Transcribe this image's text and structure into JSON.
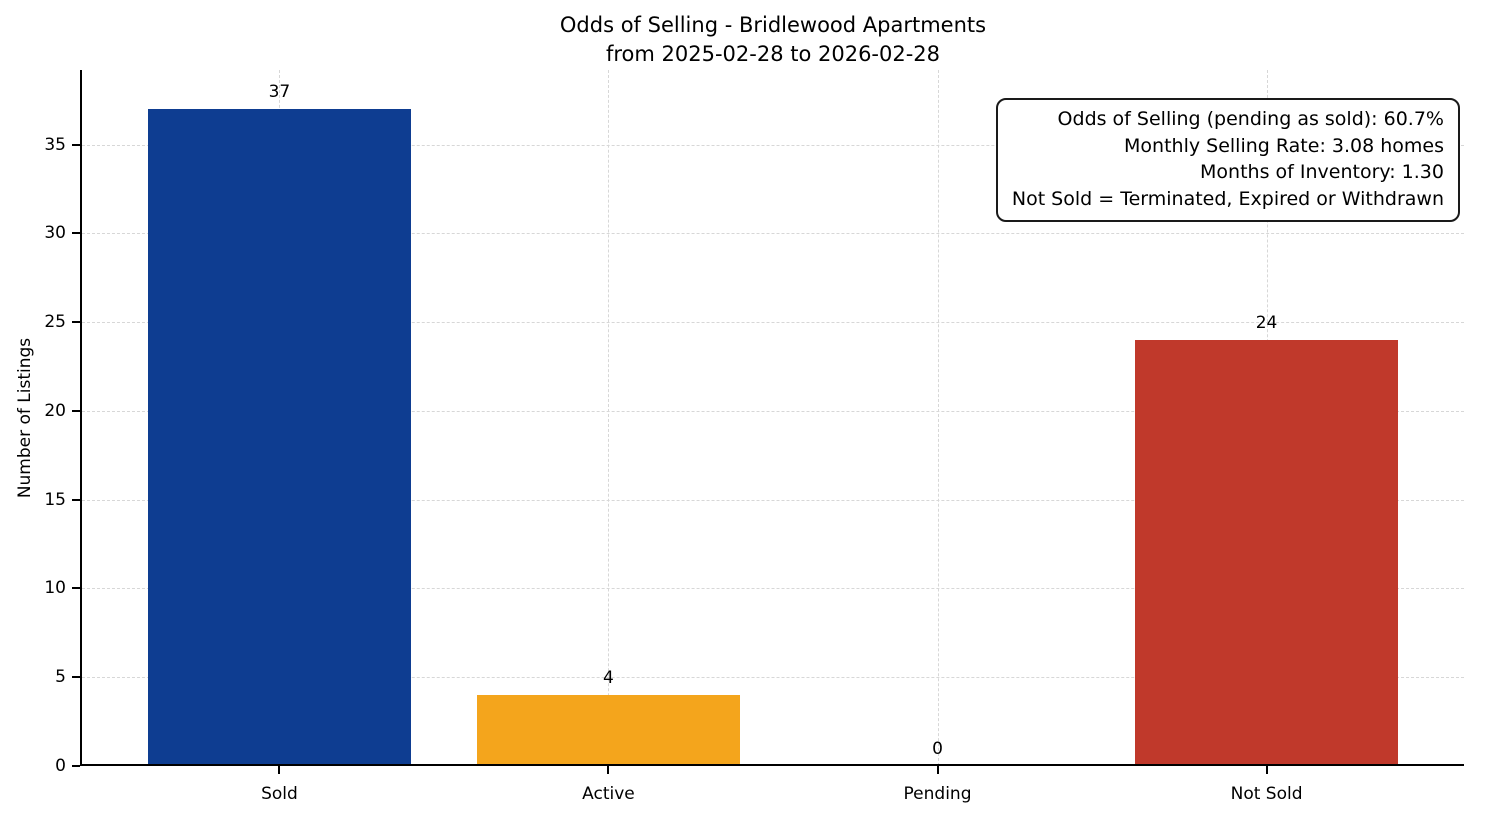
{
  "chart_data": {
    "type": "bar",
    "title": "Odds of Selling - Bridlewood Apartments",
    "subtitle": "from 2025-02-28 to 2026-02-28",
    "categories": [
      "Sold",
      "Active",
      "Pending",
      "Not Sold"
    ],
    "values": [
      37,
      4,
      0,
      24
    ],
    "bar_colors": [
      "#0e3d91",
      "#f4a51c",
      "#9e9e9e",
      "#c0392b"
    ],
    "xlabel": "",
    "ylabel": "Number of Listings",
    "ylim": [
      0,
      39.2
    ],
    "yticks": [
      0,
      5,
      10,
      15,
      20,
      25,
      30,
      35
    ],
    "grid": "dashed, horizontal and vertical",
    "legend": "none",
    "annotation_lines": [
      "Odds of Selling (pending as sold): 60.7%",
      "Monthly Selling Rate: 3.08 homes",
      "Months of Inventory: 1.30",
      "Not Sold = Terminated, Expired or Withdrawn"
    ]
  }
}
